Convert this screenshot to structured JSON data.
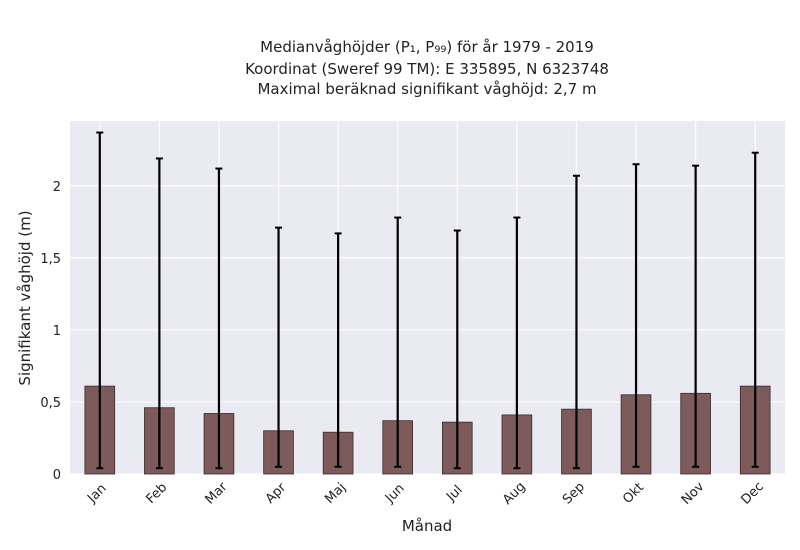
{
  "chart_data": {
    "type": "bar",
    "title_lines": [
      "Medianvåghöjder (P₁, P₉₉) för år 1979 - 2019",
      "Koordinat (Sweref 99 TM): E 335895, N 6323748",
      "Maximal beräknad signifikant våghöjd: 2,7 m"
    ],
    "xlabel": "Månad",
    "ylabel": "Signifikant våghöjd (m)",
    "categories": [
      "Jan",
      "Feb",
      "Mar",
      "Apr",
      "Maj",
      "Jun",
      "Jul",
      "Aug",
      "Sep",
      "Okt",
      "Nov",
      "Dec"
    ],
    "values": [
      0.61,
      0.46,
      0.42,
      0.3,
      0.29,
      0.37,
      0.36,
      0.41,
      0.45,
      0.55,
      0.56,
      0.61
    ],
    "err_low": [
      0.04,
      0.04,
      0.04,
      0.05,
      0.05,
      0.05,
      0.04,
      0.04,
      0.04,
      0.05,
      0.05,
      0.05
    ],
    "err_high": [
      2.37,
      2.19,
      2.12,
      1.71,
      1.67,
      1.78,
      1.69,
      1.78,
      2.07,
      2.15,
      2.14,
      2.23
    ],
    "ylim": [
      0,
      2.45
    ],
    "yticks": [
      0,
      0.5,
      1,
      1.5,
      2
    ],
    "ytick_labels": [
      "0",
      "0,5",
      "1",
      "1,5",
      "2"
    ],
    "grid": true,
    "bar_color": "#7d5b5b",
    "bar_edge_color": "#3a2a2a",
    "error_color": "#000000",
    "plot_background": "#eaeaf2",
    "grid_color": "#ffffff"
  }
}
